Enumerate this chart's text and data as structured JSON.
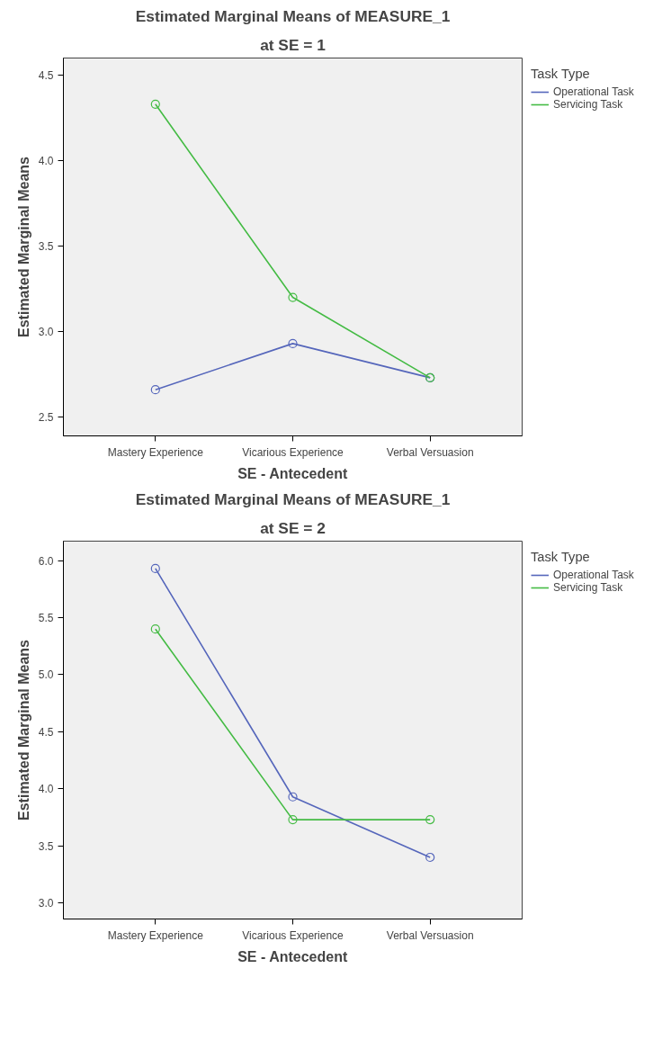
{
  "chart_data": [
    {
      "type": "line",
      "title": "Estimated Marginal Means of MEASURE_1",
      "subtitle": "at SE = 1",
      "xlabel": "SE - Antecedent",
      "ylabel": "Estimated Marginal Means",
      "legend_title": "Task Type",
      "categories": [
        "Mastery Experience",
        "Vicarious Experience",
        "Verbal Versuasion"
      ],
      "series": [
        {
          "name": "Operational Task",
          "color": "#5566bb",
          "values": [
            2.66,
            2.93,
            2.73
          ]
        },
        {
          "name": "Servicing Task",
          "color": "#44bb44",
          "values": [
            4.33,
            3.2,
            2.73
          ]
        }
      ],
      "ylim": [
        2.39,
        4.6
      ],
      "yticks": [
        {
          "value": 2.5,
          "label": "2.5"
        },
        {
          "value": 3,
          "label": "3.0"
        },
        {
          "value": 3.5,
          "label": "3.5"
        },
        {
          "value": 4,
          "label": "4.0"
        },
        {
          "value": 4.5,
          "label": "4.5"
        }
      ],
      "marker": "circle",
      "line_style": "solid",
      "legend": "top right",
      "grid": false
    },
    {
      "type": "line",
      "title": "Estimated Marginal Means of MEASURE_1",
      "subtitle": "at SE = 2",
      "xlabel": "SE - Antecedent",
      "ylabel": "Estimated Marginal Means",
      "legend_title": "Task Type",
      "categories": [
        "Mastery Experience",
        "Vicarious Experience",
        "Verbal Versuasion"
      ],
      "series": [
        {
          "name": "Operational Task",
          "color": "#5566bb",
          "values": [
            5.93,
            3.93,
            3.4
          ]
        },
        {
          "name": "Servicing Task",
          "color": "#44bb44",
          "values": [
            5.4,
            3.73,
            3.73
          ]
        }
      ],
      "ylim": [
        2.86,
        6.17
      ],
      "yticks": [
        {
          "value": 3,
          "label": "3.0"
        },
        {
          "value": 3.5,
          "label": "3.5"
        },
        {
          "value": 4,
          "label": "4.0"
        },
        {
          "value": 4.5,
          "label": "4.5"
        },
        {
          "value": 5,
          "label": "5.0"
        },
        {
          "value": 5.5,
          "label": "5.5"
        },
        {
          "value": 6,
          "label": "6.0"
        }
      ],
      "marker": "circle",
      "line_style": "solid",
      "legend": "top right",
      "grid": false
    }
  ]
}
